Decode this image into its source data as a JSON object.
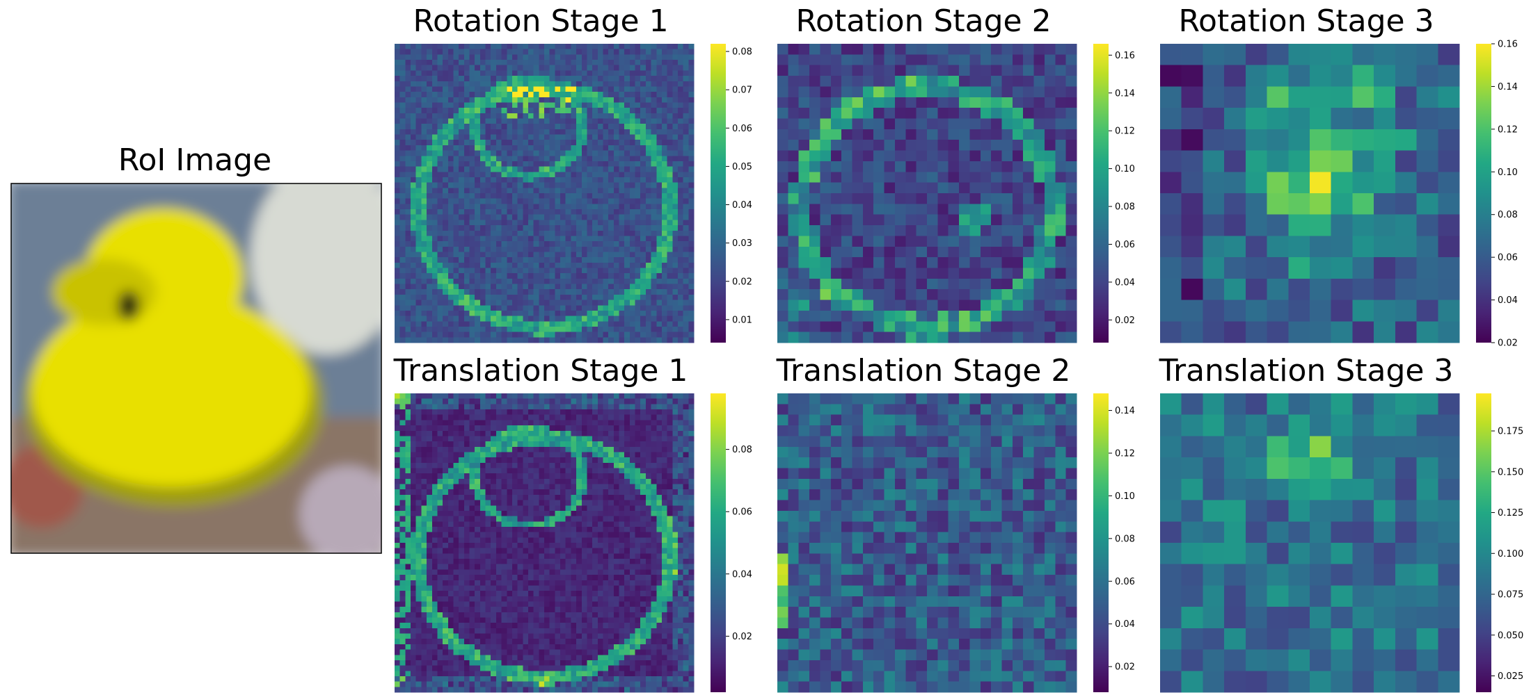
{
  "figure": {
    "roi": {
      "title": "RoI Image",
      "colors": {
        "background": "#6c7f96",
        "duck": "#e8e000",
        "duck_shadow": "#9f9d10",
        "beak": "#c9c206",
        "eye": "#1c1c10",
        "bottle": "#d7dad3"
      }
    },
    "colormap": "viridis",
    "panels": [
      {
        "id": "rot1",
        "title": "Rotation Stage 1",
        "grid": 56,
        "vmin": 0.004,
        "vmax": 0.082,
        "ticks": [
          0.01,
          0.02,
          0.03,
          0.04,
          0.05,
          0.06,
          0.07,
          0.08
        ],
        "tick_labels": [
          "0.01",
          "0.02",
          "0.03",
          "0.04",
          "0.05",
          "0.06",
          "0.07",
          "0.08"
        ],
        "pattern": "edges"
      },
      {
        "id": "rot2",
        "title": "Rotation Stage 2",
        "grid": 28,
        "vmin": 0.008,
        "vmax": 0.166,
        "ticks": [
          0.02,
          0.04,
          0.06,
          0.08,
          0.1,
          0.12,
          0.14,
          0.16
        ],
        "tick_labels": [
          "0.02",
          "0.04",
          "0.06",
          "0.08",
          "0.10",
          "0.12",
          "0.14",
          "0.16"
        ],
        "pattern": "ring"
      },
      {
        "id": "rot3",
        "title": "Rotation Stage 3",
        "grid": 14,
        "vmin": 0.02,
        "vmax": 0.16,
        "ticks": [
          0.02,
          0.04,
          0.06,
          0.08,
          0.1,
          0.12,
          0.14,
          0.16
        ],
        "tick_labels": [
          "0.02",
          "0.04",
          "0.06",
          "0.08",
          "0.10",
          "0.12",
          "0.14",
          "0.16"
        ],
        "pattern": "center"
      },
      {
        "id": "tra1",
        "title": "Translation Stage 1",
        "grid": 56,
        "vmin": 0.002,
        "vmax": 0.098,
        "ticks": [
          0.02,
          0.04,
          0.06,
          0.08
        ],
        "tick_labels": [
          "0.02",
          "0.04",
          "0.06",
          "0.08"
        ],
        "pattern": "edges_outline"
      },
      {
        "id": "tra2",
        "title": "Translation Stage 2",
        "grid": 28,
        "vmin": 0.008,
        "vmax": 0.148,
        "ticks": [
          0.02,
          0.04,
          0.06,
          0.08,
          0.1,
          0.12,
          0.14
        ],
        "tick_labels": [
          "0.02",
          "0.04",
          "0.06",
          "0.08",
          "0.10",
          "0.12",
          "0.14"
        ],
        "pattern": "noise_left"
      },
      {
        "id": "tra3",
        "title": "Translation Stage 3",
        "grid": 14,
        "vmin": 0.015,
        "vmax": 0.198,
        "ticks": [
          0.025,
          0.05,
          0.075,
          0.1,
          0.125,
          0.15,
          0.175
        ],
        "tick_labels": [
          "0.025",
          "0.050",
          "0.075",
          "0.100",
          "0.125",
          "0.150",
          "0.175"
        ],
        "pattern": "upper"
      }
    ]
  },
  "chart_data": [
    {
      "type": "heatmap",
      "title": "Rotation Stage 1",
      "rows": 56,
      "cols": 56,
      "value_range": [
        0.004,
        0.082
      ]
    },
    {
      "type": "heatmap",
      "title": "Rotation Stage 2",
      "rows": 28,
      "cols": 28,
      "value_range": [
        0.008,
        0.166
      ]
    },
    {
      "type": "heatmap",
      "title": "Rotation Stage 3",
      "rows": 14,
      "cols": 14,
      "value_range": [
        0.02,
        0.16
      ]
    },
    {
      "type": "heatmap",
      "title": "Translation Stage 1",
      "rows": 56,
      "cols": 56,
      "value_range": [
        0.002,
        0.098
      ]
    },
    {
      "type": "heatmap",
      "title": "Translation Stage 2",
      "rows": 28,
      "cols": 28,
      "value_range": [
        0.008,
        0.148
      ]
    },
    {
      "type": "heatmap",
      "title": "Translation Stage 3",
      "rows": 14,
      "cols": 14,
      "value_range": [
        0.015,
        0.198
      ]
    }
  ]
}
